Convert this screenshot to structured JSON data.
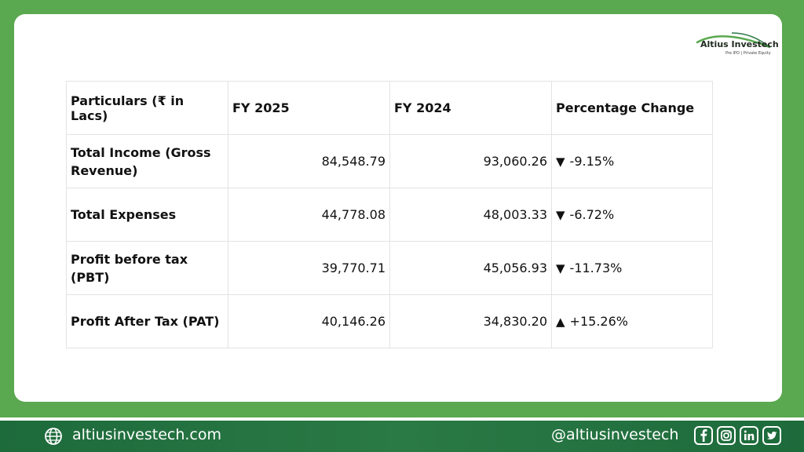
{
  "logo": {
    "name": "Altius Investech",
    "tagline": "Pre IPO | Private Equity"
  },
  "table": {
    "headers": [
      "Particulars (₹ in Lacs)",
      "FY 2025",
      "FY 2024",
      "Percentage Change"
    ],
    "rows": [
      {
        "label": "Total Income (Gross Revenue)",
        "fy2025": "84,548.79",
        "fy2024": "93,060.26",
        "direction": "down",
        "arrow": "▼",
        "change": "-9.15%"
      },
      {
        "label": "Total Expenses",
        "fy2025": "44,778.08",
        "fy2024": "48,003.33",
        "direction": "down",
        "arrow": "▼",
        "change": "-6.72%"
      },
      {
        "label": "Profit before tax (PBT)",
        "fy2025": "39,770.71",
        "fy2024": "45,056.93",
        "direction": "down",
        "arrow": "▼",
        "change": "-11.73%"
      },
      {
        "label": "Profit After Tax (PAT)",
        "fy2025": "40,146.26",
        "fy2024": "34,830.20",
        "direction": "up",
        "arrow": "▲",
        "change": "+15.26%"
      }
    ]
  },
  "footer": {
    "website": "altiusinvestech.com",
    "handle": "@altiusinvestech",
    "social_icons": [
      "facebook-icon",
      "instagram-icon",
      "linkedin-icon",
      "twitter-icon"
    ]
  },
  "colors": {
    "frame_green": "#5aa84f",
    "footer_green": "#1d6a3b"
  }
}
